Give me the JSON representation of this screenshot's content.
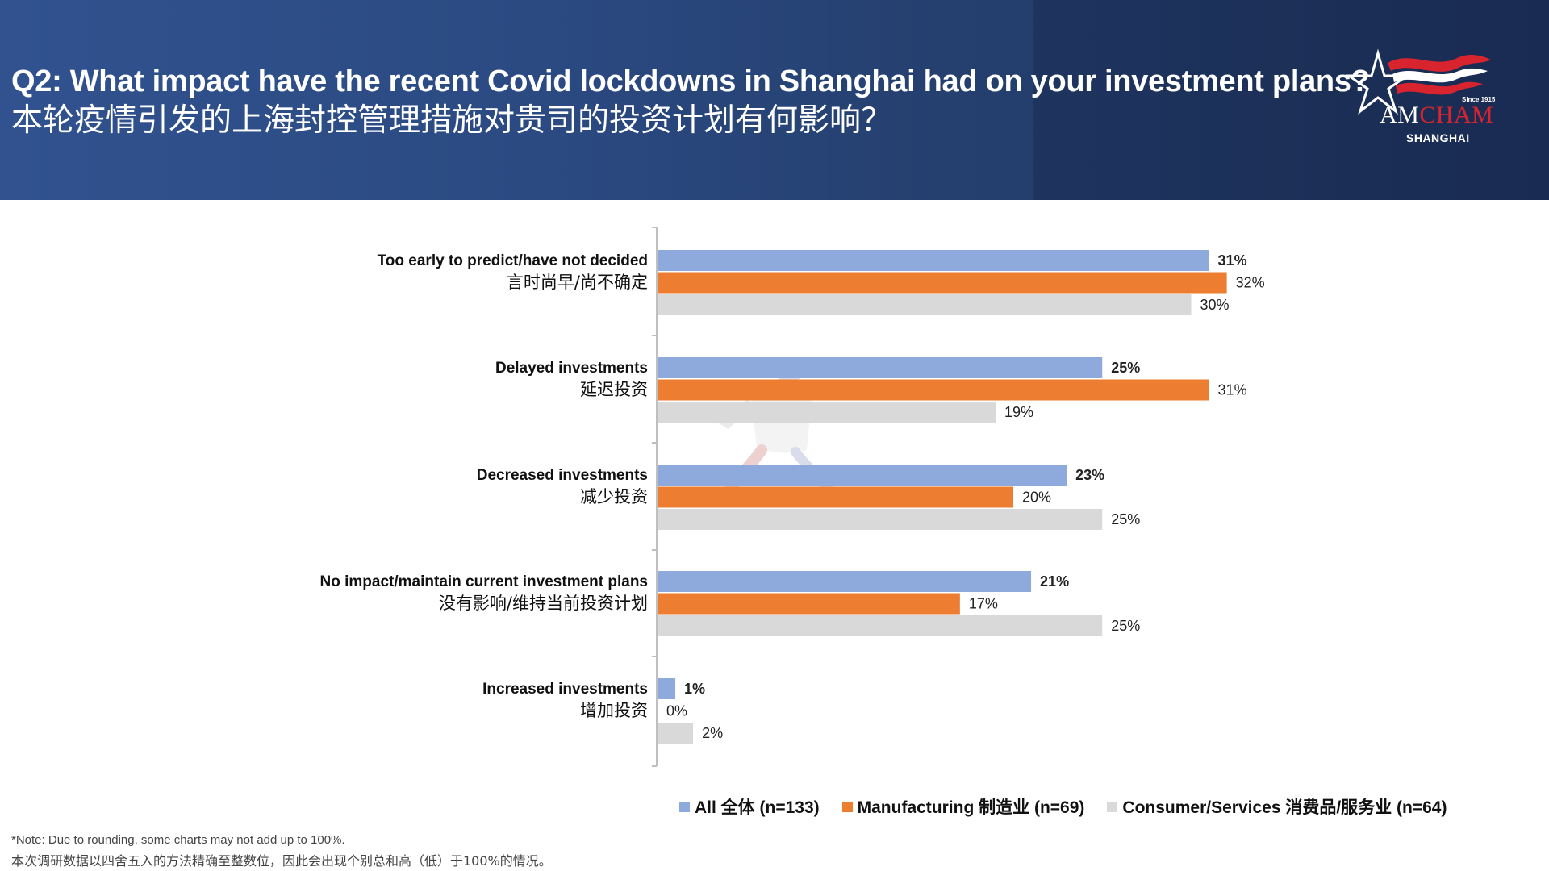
{
  "header": {
    "title_en": "Q2: What impact have the recent Covid lockdowns in Shanghai had on your investment plans?",
    "title_zh": "本轮疫情引发的上海封控管理措施对贵司的投资计划有何影响？"
  },
  "logo": {
    "since": "Since 1915",
    "name_part1": "AM",
    "name_part2": "CHAM",
    "city": "SHANGHAI",
    "colors": {
      "red": "#d8242f",
      "white": "#ffffff"
    }
  },
  "chart_data": {
    "type": "bar",
    "orientation": "horizontal",
    "categories": [
      {
        "en": "Too early to predict/have not decided",
        "zh": "言时尚早/尚不确定"
      },
      {
        "en": "Delayed investments",
        "zh": "延迟投资"
      },
      {
        "en": "Decreased investments",
        "zh": "减少投资"
      },
      {
        "en": "No impact/maintain current investment plans",
        "zh": "没有影响/维持当前投资计划"
      },
      {
        "en": "Increased investments",
        "zh": "增加投资"
      }
    ],
    "series": [
      {
        "name": "All 全体 (n=133)",
        "color": "#8eaadc",
        "values": [
          31,
          25,
          23,
          21,
          1
        ],
        "label_bold": true
      },
      {
        "name": "Manufacturing 制造业 (n=69)",
        "color": "#ed7d31",
        "values": [
          32,
          31,
          20,
          17,
          0
        ],
        "label_bold": false
      },
      {
        "name": "Consumer/Services 消费品/服务业 (n=64)",
        "color": "#d9d9d9",
        "values": [
          30,
          19,
          25,
          25,
          2
        ],
        "label_bold": false
      }
    ],
    "unit": "%",
    "xlim": [
      0,
      32
    ],
    "grid": false,
    "legend_position": "bottom"
  },
  "notes": {
    "en": "*Note: Due to rounding, some charts may not add up to 100%.",
    "zh": "本次调研数据以四舍五入的方法精确至整数位，因此会出现个别总和高（低）于100%的情况。"
  }
}
